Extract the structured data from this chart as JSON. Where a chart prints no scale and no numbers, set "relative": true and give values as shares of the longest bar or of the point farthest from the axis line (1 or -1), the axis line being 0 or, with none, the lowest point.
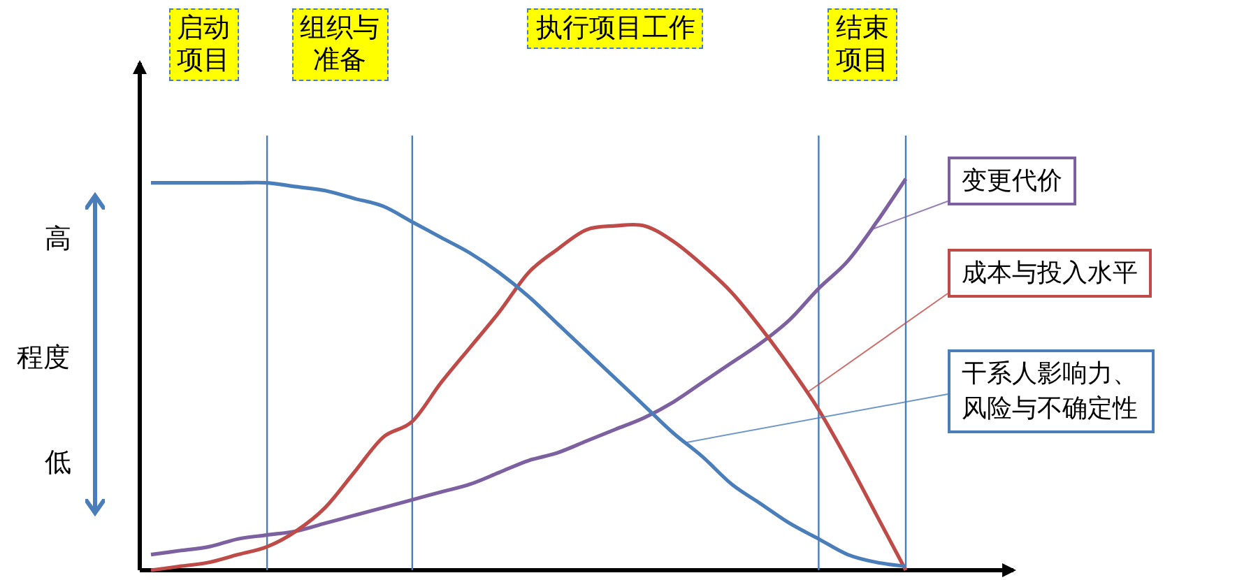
{
  "chart_data": {
    "type": "line",
    "relative": true,
    "legend": false,
    "grid": "x",
    "marker": "none",
    "line_style": "solid",
    "ylabel": "程度",
    "categories": [
      null,
      null,
      null,
      null,
      null,
      null,
      null,
      null,
      null,
      null,
      null,
      null,
      null,
      null,
      null,
      null,
      null,
      null,
      null,
      null,
      null,
      null,
      null,
      null,
      null,
      null,
      null
    ],
    "series": [
      {
        "name": "变更代价",
        "color": "#7d60a0",
        "values": [
          0.04,
          0.05,
          0.06,
          0.08,
          0.09,
          0.1,
          0.12,
          0.14,
          0.16,
          0.18,
          0.2,
          0.22,
          0.25,
          0.28,
          0.3,
          0.33,
          0.36,
          0.39,
          0.43,
          0.48,
          0.53,
          0.58,
          0.64,
          0.72,
          0.79,
          0.89,
          1.0
        ]
      },
      {
        "name": "成本与投入水平",
        "color": "#be4b48",
        "values": [
          0.0,
          0.01,
          0.02,
          0.04,
          0.06,
          0.1,
          0.16,
          0.25,
          0.34,
          0.38,
          0.48,
          0.57,
          0.66,
          0.76,
          0.82,
          0.87,
          0.88,
          0.88,
          0.84,
          0.78,
          0.71,
          0.62,
          0.52,
          0.41,
          0.28,
          0.14,
          0.0
        ]
      },
      {
        "name": "干系人影响力、风险与不确定性",
        "color": "#4a7ebb",
        "values": [
          0.99,
          0.99,
          0.99,
          0.99,
          0.99,
          0.98,
          0.97,
          0.95,
          0.93,
          0.89,
          0.85,
          0.81,
          0.76,
          0.7,
          0.63,
          0.56,
          0.49,
          0.42,
          0.35,
          0.29,
          0.22,
          0.17,
          0.12,
          0.08,
          0.04,
          0.02,
          0.01
        ]
      }
    ],
    "annotations": [
      "启动项目",
      "组织与准备",
      "执行项目工作",
      "结束项目",
      "高",
      "低"
    ]
  }
}
